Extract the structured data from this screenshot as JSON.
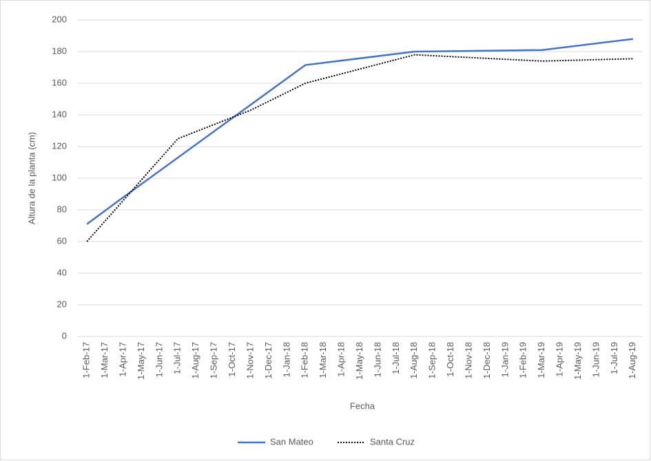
{
  "chart_data": {
    "type": "line",
    "x_label": "Fecha",
    "y_label": "Altura de la planta (cm)",
    "categories": [
      "1-Feb-17",
      "1-Mar-17",
      "1-Apr-17",
      "1-May-17",
      "1-Jun-17",
      "1-Jul-17",
      "1-Aug-17",
      "1-Sep-17",
      "1-Oct-17",
      "1-Nov-17",
      "1-Dec-17",
      "1-Jan-18",
      "1-Feb-18",
      "1-Mar-18",
      "1-Apr-18",
      "1-May-18",
      "1-Jun-18",
      "1-Jul-18",
      "1-Aug-18",
      "1-Sep-18",
      "1-Oct-18",
      "1-Nov-18",
      "1-Dec-18",
      "1-Jan-19",
      "1-Feb-19",
      "1-Mar-19",
      "1-Apr-19",
      "1-May-19",
      "1-Jun-19",
      "1-Jul-19",
      "1-Aug-19"
    ],
    "series": [
      {
        "name": "San Mateo",
        "color": "#4472c4",
        "dash": "solid",
        "x": [
          "1-Feb-17",
          "1-Apr-17",
          "1-Feb-18",
          "1-Aug-18",
          "1-Mar-19",
          "1-Aug-19"
        ],
        "values": [
          71,
          88,
          171.5,
          180,
          181,
          188
        ]
      },
      {
        "name": "Santa Cruz",
        "color": "#000000",
        "dash": "dotted",
        "x": [
          "1-Feb-17",
          "1-Apr-17",
          "1-Jul-17",
          "1-Nov-17",
          "1-Feb-18",
          "1-Aug-18",
          "1-Mar-19",
          "1-Aug-19"
        ],
        "values": [
          60,
          86,
          125,
          143,
          160,
          178,
          174,
          175.5
        ]
      }
    ],
    "ylim": [
      0,
      200
    ],
    "yticks": [
      0,
      20,
      40,
      60,
      80,
      100,
      120,
      140,
      160,
      180,
      200
    ],
    "grid": true,
    "legend": "bottom"
  }
}
